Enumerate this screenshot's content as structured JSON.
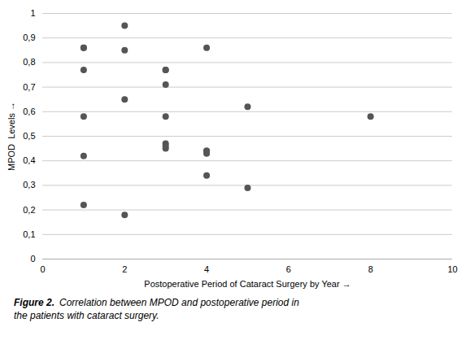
{
  "chart_data": {
    "type": "scatter",
    "x": [
      1,
      1,
      1,
      1,
      1,
      1,
      2,
      2,
      2,
      2,
      3,
      3,
      3,
      3,
      3,
      3,
      3,
      4,
      4,
      4,
      4,
      4,
      5,
      5,
      8
    ],
    "values": [
      0.86,
      0.86,
      0.77,
      0.58,
      0.42,
      0.22,
      0.95,
      0.85,
      0.65,
      0.18,
      0.77,
      0.77,
      0.71,
      0.58,
      0.47,
      0.46,
      0.45,
      0.86,
      0.44,
      0.43,
      0.44,
      0.34,
      0.62,
      0.29,
      0.58
    ],
    "color": "#555555",
    "xlim": [
      0,
      10
    ],
    "xticks": [
      0,
      2,
      4,
      6,
      8,
      10
    ],
    "ylim": [
      0,
      1
    ],
    "yticks": [
      0,
      {
        "value": 0.1,
        "label": "0,1"
      },
      {
        "value": 0.2,
        "label": "0,2"
      },
      {
        "value": 0.3,
        "label": "0,3"
      },
      {
        "value": 0.4,
        "label": "0,4"
      },
      {
        "value": 0.5,
        "label": "0,5"
      },
      {
        "value": 0.6,
        "label": "0,6"
      },
      {
        "value": 0.7,
        "label": "0,7"
      },
      {
        "value": 0.8,
        "label": "0,8"
      },
      {
        "value": 0.9,
        "label": "0,9"
      },
      1
    ],
    "xlabel": "Postoperative Period of Cataract Surgery by Year",
    "ylabel": "MPOD  Levels",
    "grid": "y",
    "caption_label": "Figure 2.",
    "caption": "Correlation between MPOD and postoperative period in\nthe patients with cataract surgery."
  }
}
